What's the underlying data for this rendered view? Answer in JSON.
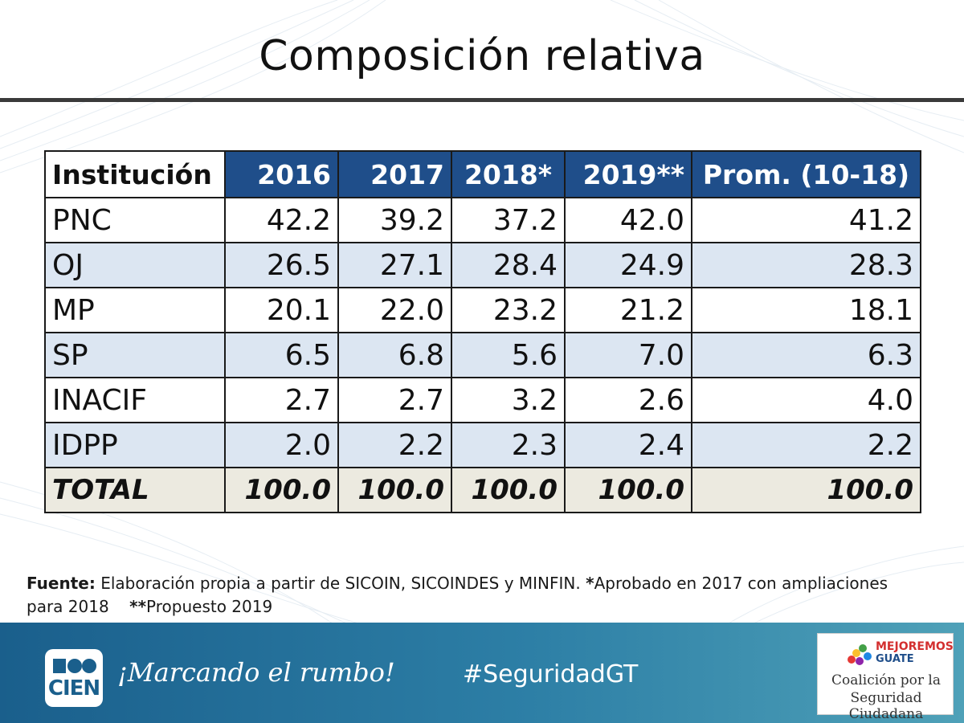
{
  "title": "Composición relativa",
  "table": {
    "headers": [
      "Institución",
      "2016",
      "2017",
      "2018*",
      "2019**",
      "Prom. (10-18)"
    ],
    "rows": [
      {
        "inst": "PNC",
        "values": [
          "42.2",
          "39.2",
          "37.2",
          "42.0",
          "41.2"
        ]
      },
      {
        "inst": "OJ",
        "values": [
          "26.5",
          "27.1",
          "28.4",
          "24.9",
          "28.3"
        ]
      },
      {
        "inst": "MP",
        "values": [
          "20.1",
          "22.0",
          "23.2",
          "21.2",
          "18.1"
        ]
      },
      {
        "inst": "SP",
        "values": [
          "6.5",
          "6.8",
          "5.6",
          "7.0",
          "6.3"
        ]
      },
      {
        "inst": "INACIF",
        "values": [
          "2.7",
          "2.7",
          "3.2",
          "2.6",
          "4.0"
        ]
      },
      {
        "inst": "IDPP",
        "values": [
          "2.0",
          "2.2",
          "2.3",
          "2.4",
          "2.2"
        ]
      }
    ],
    "total": {
      "inst": "TOTAL",
      "values": [
        "100.0",
        "100.0",
        "100.0",
        "100.0",
        "100.0"
      ]
    }
  },
  "source": {
    "label": "Fuente:",
    "text1": " Elaboración propia a partir de SICOIN, SICOINDES y MINFIN. ",
    "star1": "*",
    "text2": "Aprobado en 2017 con ampliaciones para 2018",
    "star2": "**",
    "text3": "Propuesto 2019"
  },
  "footer": {
    "logo_text": "CIEN",
    "slogan": "¡Marcando el rumbo!",
    "hashtag": "#SeguridadGT",
    "partner_line1": "MEJOREMOS",
    "partner_line2": "GUATE",
    "partner_name1": "Coalición por la",
    "partner_name2": "Seguridad Ciudadana"
  },
  "colors": {
    "header_blue": "#1f4e8a",
    "row_alt": "#dce6f2",
    "total_bg": "#eceae0",
    "footer": "#2d7fa6"
  }
}
